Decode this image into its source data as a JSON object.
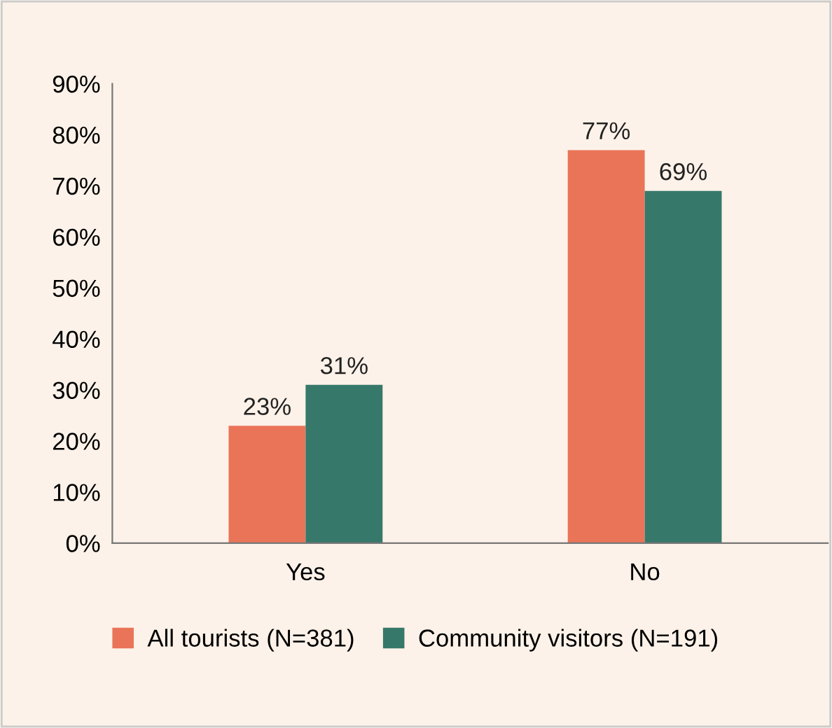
{
  "chart_data": {
    "type": "bar",
    "categories": [
      "Yes",
      "No"
    ],
    "series": [
      {
        "name": "All tourists (N=381)",
        "color": "#ea7458",
        "values": [
          23,
          77
        ]
      },
      {
        "name": "Community visitors (N=191)",
        "color": "#36796a",
        "values": [
          31,
          69
        ]
      }
    ],
    "ylim": [
      0,
      90
    ],
    "yticks": [
      {
        "value": 0,
        "label": "0%"
      },
      {
        "value": 10,
        "label": "10%"
      },
      {
        "value": 20,
        "label": "20%"
      },
      {
        "value": 30,
        "label": "30%"
      },
      {
        "value": 40,
        "label": "40%"
      },
      {
        "value": 50,
        "label": "50%"
      },
      {
        "value": 60,
        "label": "60%"
      },
      {
        "value": 70,
        "label": "70%"
      },
      {
        "value": 80,
        "label": "80%"
      },
      {
        "value": 90,
        "label": "90%"
      }
    ],
    "value_labels": [
      [
        "23%",
        "77%"
      ],
      [
        "31%",
        "69%"
      ]
    ],
    "grid": false,
    "legend": "bottom"
  }
}
